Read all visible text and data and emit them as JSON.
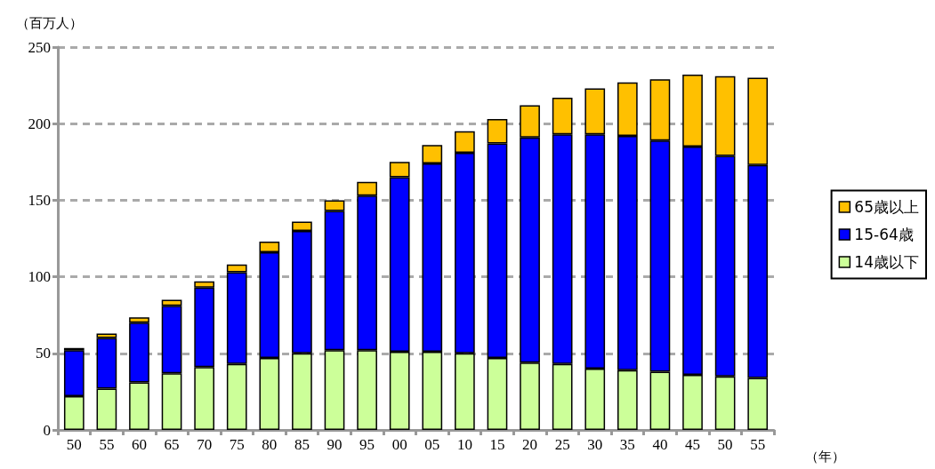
{
  "chart_data": {
    "type": "bar",
    "stacked": true,
    "ylabel": "（百万人）",
    "xlabel": "（年）",
    "categories": [
      "50",
      "55",
      "60",
      "65",
      "70",
      "75",
      "80",
      "85",
      "90",
      "95",
      "00",
      "05",
      "10",
      "15",
      "20",
      "25",
      "30",
      "35",
      "40",
      "45",
      "50",
      "55"
    ],
    "series": [
      {
        "name": "14歳以下",
        "color": "#ccff99",
        "values": [
          22,
          27,
          31,
          37,
          41,
          43,
          47,
          50,
          52,
          52,
          51,
          51,
          50,
          47,
          44,
          43,
          40,
          39,
          38,
          36,
          35,
          34
        ]
      },
      {
        "name": "15-64歳",
        "color": "#0000ff",
        "values": [
          30,
          33,
          39,
          44,
          52,
          60,
          69,
          80,
          91,
          101,
          114,
          123,
          131,
          140,
          147,
          150,
          153,
          153,
          151,
          149,
          144,
          139
        ]
      },
      {
        "name": "65歳以上",
        "color": "#ffc000",
        "values": [
          1.5,
          3,
          3.5,
          4,
          4,
          5,
          7,
          6,
          7,
          9,
          10,
          12,
          14,
          16,
          21,
          24,
          30,
          35,
          40,
          47,
          52,
          57
        ]
      }
    ],
    "ylim": [
      0,
      250
    ],
    "yticks": [
      0,
      50,
      100,
      150,
      200,
      250
    ],
    "grid": "y",
    "legend": "right"
  }
}
